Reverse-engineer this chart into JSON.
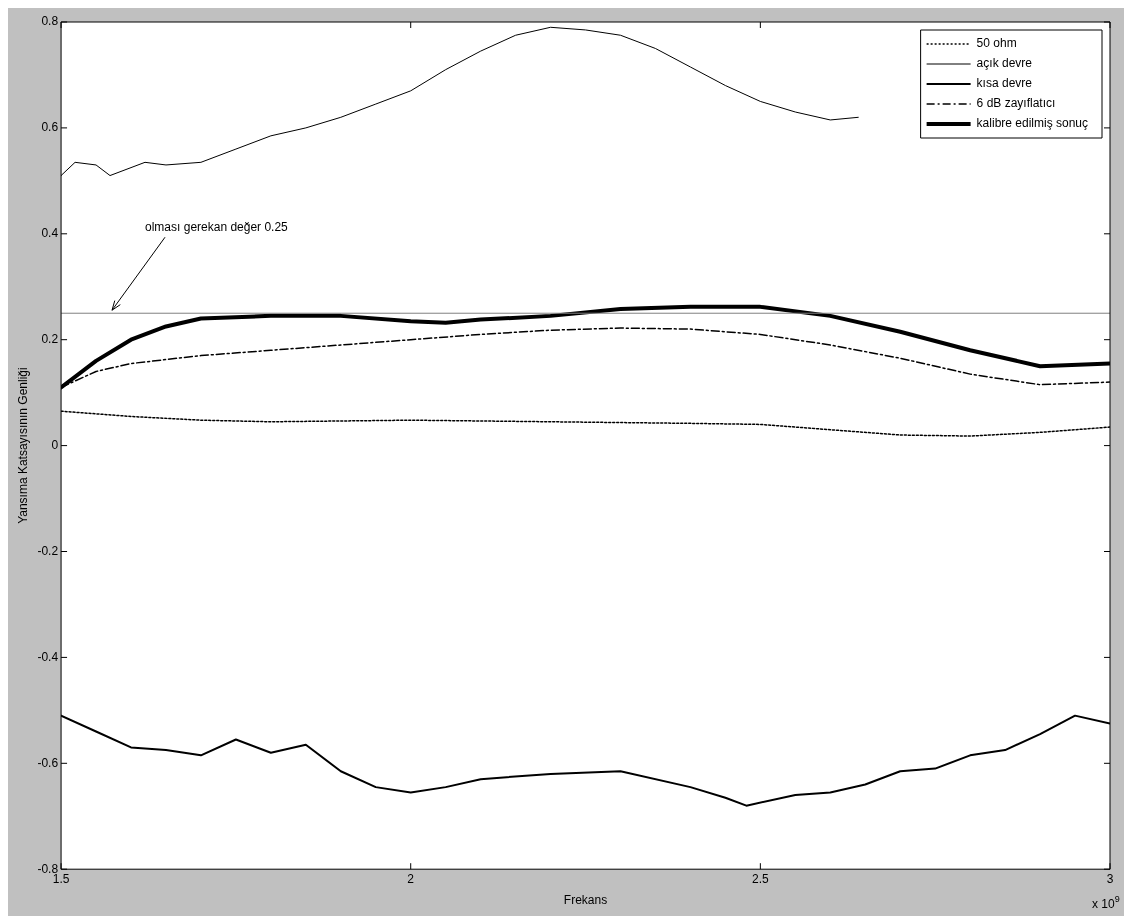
{
  "chart_data": {
    "type": "line",
    "xlabel": "Frekans",
    "ylabel": "Yansıma Katsayısının Genliği",
    "xlim": [
      1.5,
      3
    ],
    "xticks": [
      1.5,
      2,
      2.5,
      3
    ],
    "ylim": [
      -0.8,
      0.8
    ],
    "yticks": [
      -0.8,
      -0.6,
      -0.4,
      -0.2,
      0,
      0.2,
      0.4,
      0.6,
      0.8
    ],
    "grid": false,
    "legend": "top right",
    "marker": "none",
    "ref_lines": [
      {
        "axis": "y",
        "value": 0.25,
        "color": "#808080",
        "line_style": "solid"
      }
    ],
    "annotations": [
      {
        "text": "olması gerekan değer 0.25",
        "x": 1.57,
        "y": 0.25
      },
      "x 10$^{9}$"
    ],
    "series": [
      {
        "name": "50 ohm",
        "color": "#000000",
        "line_style": "dotted",
        "x": [
          1.5,
          1.6,
          1.7,
          1.8,
          2.0,
          2.2,
          2.4,
          2.5,
          2.6,
          2.7,
          2.8,
          2.9,
          3.0
        ],
        "values": [
          0.065,
          0.055,
          0.048,
          0.045,
          0.048,
          0.045,
          0.042,
          0.04,
          0.03,
          0.02,
          0.018,
          0.025,
          0.035
        ]
      },
      {
        "name": "açık devre",
        "color": "#000000",
        "line_style": "solid",
        "x": [
          1.5,
          1.52,
          1.55,
          1.57,
          1.62,
          1.65,
          1.7,
          1.75,
          1.8,
          1.85,
          1.9,
          1.95,
          2.0,
          2.05,
          2.1,
          2.15,
          2.2,
          2.25,
          2.3,
          2.35,
          2.4,
          2.45,
          2.5,
          2.55,
          2.6,
          2.64
        ],
        "values": [
          0.51,
          0.535,
          0.53,
          0.51,
          0.535,
          0.53,
          0.535,
          0.56,
          0.585,
          0.6,
          0.62,
          0.645,
          0.67,
          0.71,
          0.745,
          0.775,
          0.79,
          0.785,
          0.775,
          0.75,
          0.715,
          0.68,
          0.65,
          0.63,
          0.615,
          0.62
        ]
      },
      {
        "name": "kısa devre",
        "color": "#000000",
        "line_style": "solid",
        "x": [
          1.5,
          1.55,
          1.6,
          1.65,
          1.7,
          1.75,
          1.8,
          1.85,
          1.9,
          1.95,
          2.0,
          2.05,
          2.1,
          2.2,
          2.3,
          2.4,
          2.45,
          2.48,
          2.55,
          2.6,
          2.65,
          2.7,
          2.75,
          2.8,
          2.85,
          2.9,
          2.95,
          3.0
        ],
        "values": [
          -0.51,
          -0.54,
          -0.57,
          -0.575,
          -0.585,
          -0.555,
          -0.58,
          -0.565,
          -0.615,
          -0.645,
          -0.655,
          -0.645,
          -0.63,
          -0.62,
          -0.615,
          -0.645,
          -0.665,
          -0.68,
          -0.66,
          -0.655,
          -0.64,
          -0.615,
          -0.61,
          -0.585,
          -0.575,
          -0.545,
          -0.51,
          -0.525
        ]
      },
      {
        "name": "6 dB zayıflatıcı",
        "color": "#000000",
        "line_style": "dashed",
        "x": [
          1.5,
          1.55,
          1.6,
          1.7,
          1.8,
          1.9,
          2.0,
          2.1,
          2.2,
          2.3,
          2.4,
          2.5,
          2.6,
          2.7,
          2.8,
          2.9,
          3.0
        ],
        "values": [
          0.11,
          0.14,
          0.155,
          0.17,
          0.18,
          0.19,
          0.2,
          0.21,
          0.218,
          0.222,
          0.22,
          0.21,
          0.19,
          0.165,
          0.135,
          0.115,
          0.12
        ]
      },
      {
        "name": "kalibre edilmiş sonuç",
        "color": "#000000",
        "line_style": "solid",
        "x": [
          1.5,
          1.55,
          1.6,
          1.65,
          1.7,
          1.8,
          1.9,
          2.0,
          2.05,
          2.1,
          2.2,
          2.3,
          2.4,
          2.5,
          2.6,
          2.7,
          2.8,
          2.9,
          3.0
        ],
        "values": [
          0.11,
          0.16,
          0.2,
          0.225,
          0.24,
          0.245,
          0.245,
          0.235,
          0.232,
          0.238,
          0.245,
          0.258,
          0.262,
          0.262,
          0.245,
          0.215,
          0.18,
          0.15,
          0.155
        ]
      }
    ]
  }
}
